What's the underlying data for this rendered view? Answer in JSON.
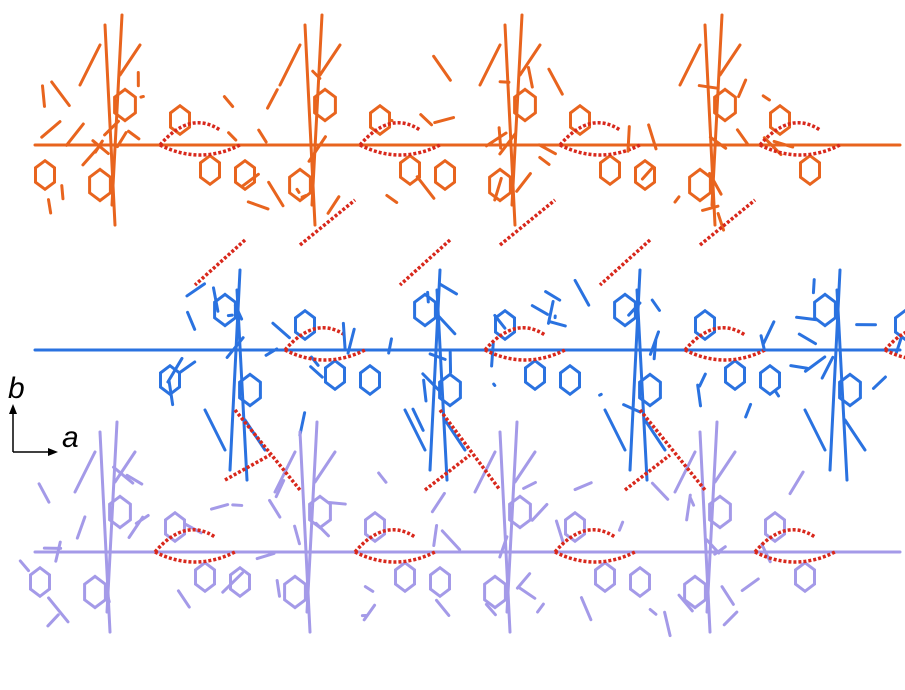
{
  "axes": {
    "vertical": "b",
    "horizontal": "a"
  }
}
